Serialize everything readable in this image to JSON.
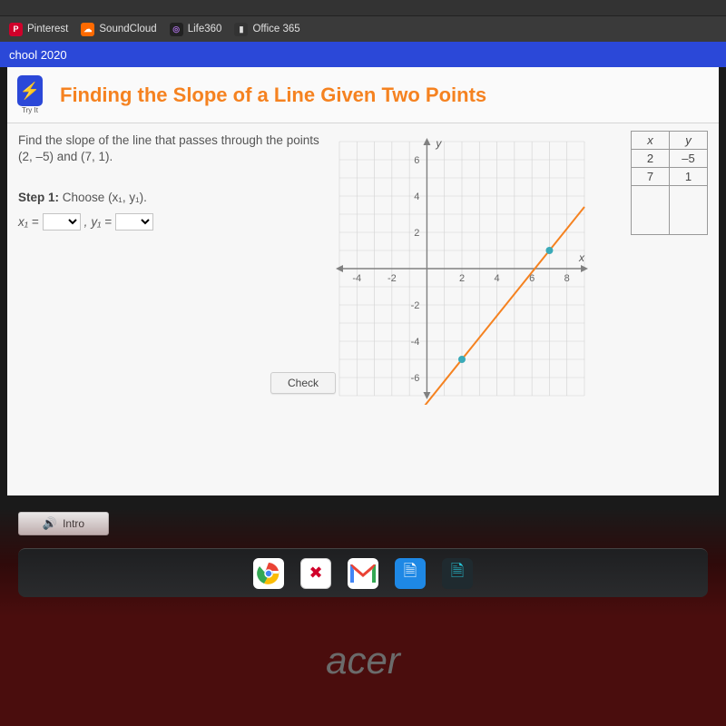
{
  "bookmarks": {
    "items": [
      {
        "label": "Pinterest",
        "color": "#d0002a",
        "glyph": "P"
      },
      {
        "label": "SoundCloud",
        "color": "#ff6a00",
        "glyph": "▰"
      },
      {
        "label": "Life360",
        "color": "#8a3bd8",
        "glyph": "◎"
      },
      {
        "label": "Office 365",
        "color": "#333333",
        "glyph": "▮"
      }
    ]
  },
  "bluebar": {
    "text": "chool 2020"
  },
  "header": {
    "tryit_label": "Try It",
    "title": "Finding the Slope of a Line Given Two Points"
  },
  "prompt": {
    "line1": "Find the slope of the line that passes through the points",
    "line2": "(2, –5) and (7, 1)."
  },
  "step": {
    "label": "Step 1:",
    "text": "Choose (x₁, y₁)."
  },
  "equation": {
    "x1_label": "x₁ =",
    "comma": ", ",
    "y1_label": "y₁ ="
  },
  "buttons": {
    "check": "Check",
    "intro": "Intro"
  },
  "chart": {
    "type": "line",
    "xlim": [
      -5,
      9
    ],
    "ylim": [
      -7,
      7
    ],
    "xticks": [
      -4,
      -2,
      2,
      4,
      6,
      8
    ],
    "yticks": [
      -6,
      -4,
      -2,
      2,
      4,
      6
    ],
    "grid_color": "#d2d2d2",
    "axis_color": "#808080",
    "line_color": "#f58220",
    "line_width": 2,
    "point_color": "#3aaab8",
    "point_radius": 4,
    "points": [
      [
        2,
        -5
      ],
      [
        7,
        1
      ]
    ],
    "line_endpoints": [
      [
        -1,
        -8.6
      ],
      [
        9,
        3.4
      ]
    ],
    "xlabel": "x",
    "ylabel": "y",
    "background_color": "#f7f7f7"
  },
  "table": {
    "columns": [
      "x",
      "y"
    ],
    "rows": [
      [
        "2",
        "–5"
      ],
      [
        "7",
        "1"
      ]
    ]
  },
  "brand": "acer"
}
